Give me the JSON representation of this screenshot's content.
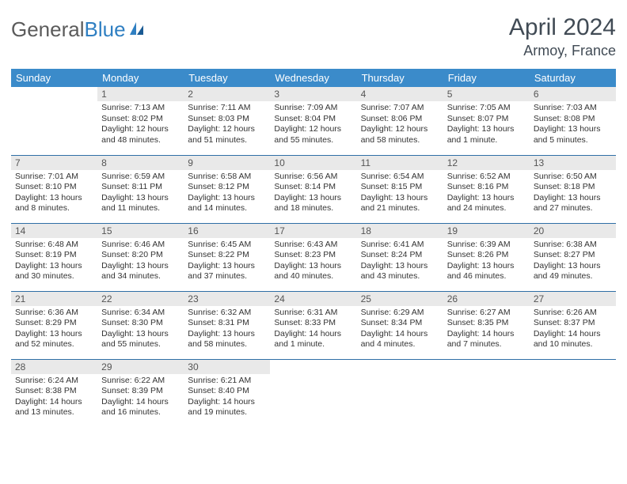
{
  "logo": {
    "part1": "General",
    "part2": "Blue"
  },
  "title": "April 2024",
  "location": "Armoy, France",
  "colors": {
    "header_bg": "#3b8bca",
    "header_text": "#ffffff",
    "row_border": "#2f6fa6",
    "daynum_bg": "#e9e9e9",
    "logo_gray": "#5b5b5b",
    "logo_blue": "#2f7fc2",
    "title_color": "#414b55"
  },
  "weekdays": [
    "Sunday",
    "Monday",
    "Tuesday",
    "Wednesday",
    "Thursday",
    "Friday",
    "Saturday"
  ],
  "weeks": [
    [
      null,
      {
        "n": "1",
        "sr": "Sunrise: 7:13 AM",
        "ss": "Sunset: 8:02 PM",
        "dl1": "Daylight: 12 hours",
        "dl2": "and 48 minutes."
      },
      {
        "n": "2",
        "sr": "Sunrise: 7:11 AM",
        "ss": "Sunset: 8:03 PM",
        "dl1": "Daylight: 12 hours",
        "dl2": "and 51 minutes."
      },
      {
        "n": "3",
        "sr": "Sunrise: 7:09 AM",
        "ss": "Sunset: 8:04 PM",
        "dl1": "Daylight: 12 hours",
        "dl2": "and 55 minutes."
      },
      {
        "n": "4",
        "sr": "Sunrise: 7:07 AM",
        "ss": "Sunset: 8:06 PM",
        "dl1": "Daylight: 12 hours",
        "dl2": "and 58 minutes."
      },
      {
        "n": "5",
        "sr": "Sunrise: 7:05 AM",
        "ss": "Sunset: 8:07 PM",
        "dl1": "Daylight: 13 hours",
        "dl2": "and 1 minute."
      },
      {
        "n": "6",
        "sr": "Sunrise: 7:03 AM",
        "ss": "Sunset: 8:08 PM",
        "dl1": "Daylight: 13 hours",
        "dl2": "and 5 minutes."
      }
    ],
    [
      {
        "n": "7",
        "sr": "Sunrise: 7:01 AM",
        "ss": "Sunset: 8:10 PM",
        "dl1": "Daylight: 13 hours",
        "dl2": "and 8 minutes."
      },
      {
        "n": "8",
        "sr": "Sunrise: 6:59 AM",
        "ss": "Sunset: 8:11 PM",
        "dl1": "Daylight: 13 hours",
        "dl2": "and 11 minutes."
      },
      {
        "n": "9",
        "sr": "Sunrise: 6:58 AM",
        "ss": "Sunset: 8:12 PM",
        "dl1": "Daylight: 13 hours",
        "dl2": "and 14 minutes."
      },
      {
        "n": "10",
        "sr": "Sunrise: 6:56 AM",
        "ss": "Sunset: 8:14 PM",
        "dl1": "Daylight: 13 hours",
        "dl2": "and 18 minutes."
      },
      {
        "n": "11",
        "sr": "Sunrise: 6:54 AM",
        "ss": "Sunset: 8:15 PM",
        "dl1": "Daylight: 13 hours",
        "dl2": "and 21 minutes."
      },
      {
        "n": "12",
        "sr": "Sunrise: 6:52 AM",
        "ss": "Sunset: 8:16 PM",
        "dl1": "Daylight: 13 hours",
        "dl2": "and 24 minutes."
      },
      {
        "n": "13",
        "sr": "Sunrise: 6:50 AM",
        "ss": "Sunset: 8:18 PM",
        "dl1": "Daylight: 13 hours",
        "dl2": "and 27 minutes."
      }
    ],
    [
      {
        "n": "14",
        "sr": "Sunrise: 6:48 AM",
        "ss": "Sunset: 8:19 PM",
        "dl1": "Daylight: 13 hours",
        "dl2": "and 30 minutes."
      },
      {
        "n": "15",
        "sr": "Sunrise: 6:46 AM",
        "ss": "Sunset: 8:20 PM",
        "dl1": "Daylight: 13 hours",
        "dl2": "and 34 minutes."
      },
      {
        "n": "16",
        "sr": "Sunrise: 6:45 AM",
        "ss": "Sunset: 8:22 PM",
        "dl1": "Daylight: 13 hours",
        "dl2": "and 37 minutes."
      },
      {
        "n": "17",
        "sr": "Sunrise: 6:43 AM",
        "ss": "Sunset: 8:23 PM",
        "dl1": "Daylight: 13 hours",
        "dl2": "and 40 minutes."
      },
      {
        "n": "18",
        "sr": "Sunrise: 6:41 AM",
        "ss": "Sunset: 8:24 PM",
        "dl1": "Daylight: 13 hours",
        "dl2": "and 43 minutes."
      },
      {
        "n": "19",
        "sr": "Sunrise: 6:39 AM",
        "ss": "Sunset: 8:26 PM",
        "dl1": "Daylight: 13 hours",
        "dl2": "and 46 minutes."
      },
      {
        "n": "20",
        "sr": "Sunrise: 6:38 AM",
        "ss": "Sunset: 8:27 PM",
        "dl1": "Daylight: 13 hours",
        "dl2": "and 49 minutes."
      }
    ],
    [
      {
        "n": "21",
        "sr": "Sunrise: 6:36 AM",
        "ss": "Sunset: 8:29 PM",
        "dl1": "Daylight: 13 hours",
        "dl2": "and 52 minutes."
      },
      {
        "n": "22",
        "sr": "Sunrise: 6:34 AM",
        "ss": "Sunset: 8:30 PM",
        "dl1": "Daylight: 13 hours",
        "dl2": "and 55 minutes."
      },
      {
        "n": "23",
        "sr": "Sunrise: 6:32 AM",
        "ss": "Sunset: 8:31 PM",
        "dl1": "Daylight: 13 hours",
        "dl2": "and 58 minutes."
      },
      {
        "n": "24",
        "sr": "Sunrise: 6:31 AM",
        "ss": "Sunset: 8:33 PM",
        "dl1": "Daylight: 14 hours",
        "dl2": "and 1 minute."
      },
      {
        "n": "25",
        "sr": "Sunrise: 6:29 AM",
        "ss": "Sunset: 8:34 PM",
        "dl1": "Daylight: 14 hours",
        "dl2": "and 4 minutes."
      },
      {
        "n": "26",
        "sr": "Sunrise: 6:27 AM",
        "ss": "Sunset: 8:35 PM",
        "dl1": "Daylight: 14 hours",
        "dl2": "and 7 minutes."
      },
      {
        "n": "27",
        "sr": "Sunrise: 6:26 AM",
        "ss": "Sunset: 8:37 PM",
        "dl1": "Daylight: 14 hours",
        "dl2": "and 10 minutes."
      }
    ],
    [
      {
        "n": "28",
        "sr": "Sunrise: 6:24 AM",
        "ss": "Sunset: 8:38 PM",
        "dl1": "Daylight: 14 hours",
        "dl2": "and 13 minutes."
      },
      {
        "n": "29",
        "sr": "Sunrise: 6:22 AM",
        "ss": "Sunset: 8:39 PM",
        "dl1": "Daylight: 14 hours",
        "dl2": "and 16 minutes."
      },
      {
        "n": "30",
        "sr": "Sunrise: 6:21 AM",
        "ss": "Sunset: 8:40 PM",
        "dl1": "Daylight: 14 hours",
        "dl2": "and 19 minutes."
      },
      null,
      null,
      null,
      null
    ]
  ]
}
